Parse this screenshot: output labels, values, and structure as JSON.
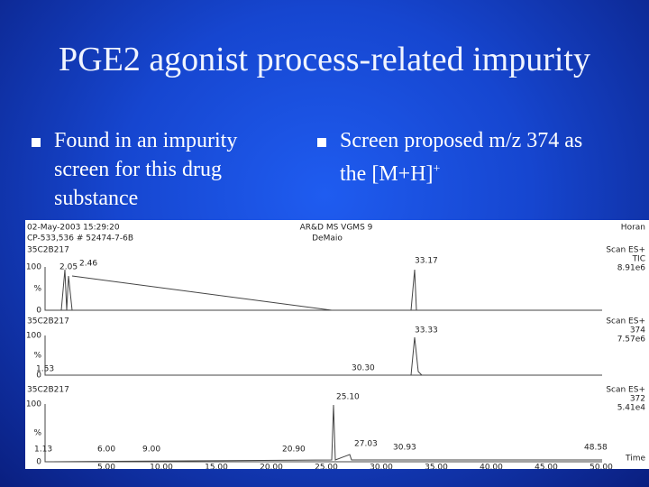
{
  "slide": {
    "title": "PGE2 agonist process-related impurity",
    "bullets": [
      {
        "lines": [
          "Found in an impurity",
          "screen for this drug",
          "substance"
        ]
      },
      {
        "lines": [
          "Screen proposed m/z 374 as",
          "the [M+H]"
        ],
        "superscript": "+"
      }
    ],
    "figure": {
      "header": [
        "02-May-2003 15:29:20",
        "AR&D MS VGMS 9",
        "Horan",
        "CP-533,536 # 52474-7-6B",
        "DeMaio"
      ],
      "panels": [
        {
          "label": "35C2B217",
          "right": [
            "Scan ES+",
            "TIC",
            "8.91e6"
          ],
          "y_labels": [
            "100",
            "%",
            "0"
          ],
          "peaks": [
            "2.05",
            "2.46",
            "33.17"
          ]
        },
        {
          "label": "35C2B217",
          "right": [
            "Scan ES+",
            "374",
            "7.57e6"
          ],
          "y_labels": [
            "100",
            "%",
            "0"
          ],
          "peaks": [
            "33.33",
            "1.53",
            "30.30"
          ]
        },
        {
          "label": "35C2B217",
          "right": [
            "Scan ES+",
            "372",
            "5.41e4"
          ],
          "y_labels": [
            "100",
            "%",
            "0"
          ],
          "peaks": [
            "25.10",
            "1.13",
            "6.00",
            "9.00",
            "20.90",
            "27.03",
            "30.93",
            "48.58"
          ]
        }
      ],
      "x_ticks": [
        "5.00",
        "10.00",
        "15.00",
        "20.00",
        "25.00",
        "30.00",
        "35.00",
        "40.00",
        "45.00",
        "50.00"
      ],
      "x_label": "Time"
    }
  }
}
